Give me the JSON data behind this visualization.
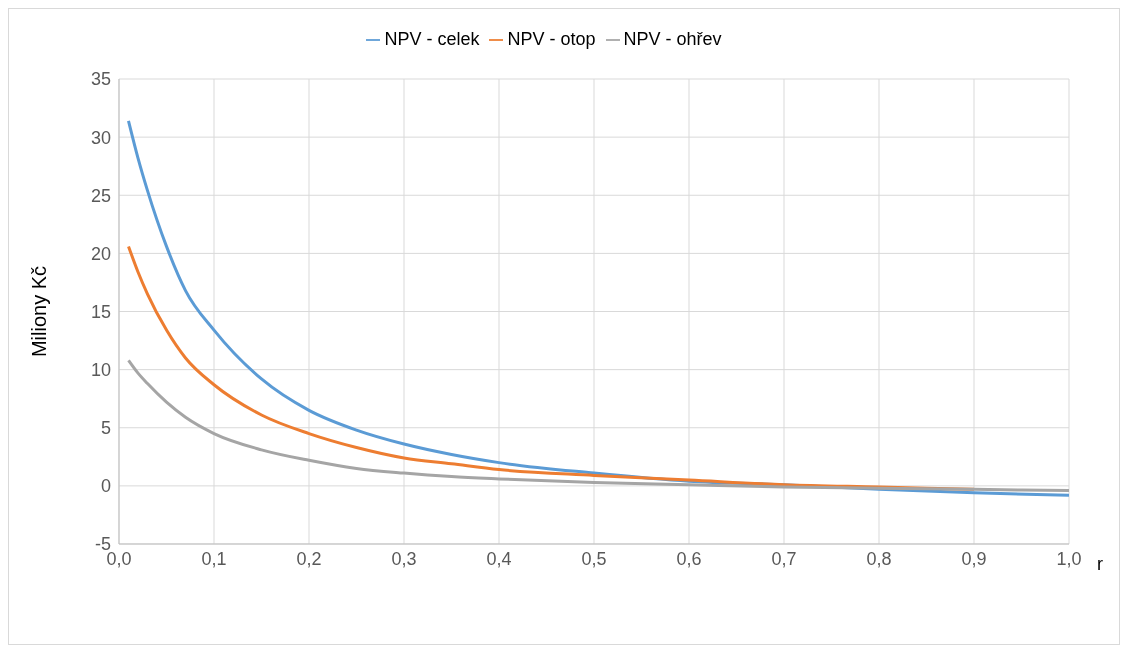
{
  "chart_data": {
    "type": "line",
    "xlabel": "r",
    "ylabel": "Miliony Kč",
    "x": [
      0.01,
      0.02,
      0.03,
      0.05,
      0.07,
      0.1,
      0.15,
      0.2,
      0.25,
      0.3,
      0.35,
      0.4,
      0.5,
      0.6,
      0.7,
      0.8,
      0.9,
      1.0
    ],
    "series": [
      {
        "name": "NPV - celek",
        "color": "#5b9bd5",
        "values": [
          31.4,
          28.2,
          25.4,
          20.6,
          16.8,
          13.4,
          9.2,
          6.5,
          4.8,
          3.6,
          2.7,
          2.0,
          1.1,
          0.4,
          0.1,
          -0.3,
          -0.6,
          -0.8
        ]
      },
      {
        "name": "NPV - otop",
        "color": "#ed7d31",
        "values": [
          20.6,
          18.4,
          16.5,
          13.4,
          11.0,
          8.7,
          6.1,
          4.5,
          3.3,
          2.4,
          1.9,
          1.4,
          0.9,
          0.5,
          0.1,
          -0.1,
          -0.3,
          null
        ]
      },
      {
        "name": "NPV - ohřev",
        "color": "#a5a5a5",
        "values": [
          10.8,
          9.7,
          8.8,
          7.2,
          5.9,
          4.5,
          3.1,
          2.2,
          1.5,
          1.1,
          0.8,
          0.6,
          0.3,
          0.1,
          -0.1,
          -0.2,
          -0.3,
          -0.4
        ]
      }
    ],
    "xlim": [
      0,
      1
    ],
    "xticks": [
      {
        "value": 0,
        "label": "0,0"
      },
      {
        "value": 0.1,
        "label": "0,1"
      },
      {
        "value": 0.2,
        "label": "0,2"
      },
      {
        "value": 0.3,
        "label": "0,3"
      },
      {
        "value": 0.4,
        "label": "0,4"
      },
      {
        "value": 0.5,
        "label": "0,5"
      },
      {
        "value": 0.6,
        "label": "0,6"
      },
      {
        "value": 0.7,
        "label": "0,7"
      },
      {
        "value": 0.8,
        "label": "0,8"
      },
      {
        "value": 0.9,
        "label": "0,9"
      },
      {
        "value": 1,
        "label": "1,0"
      }
    ],
    "ylim": [
      -5,
      35
    ],
    "yticks": [
      -5,
      0,
      5,
      10,
      15,
      20,
      25,
      30,
      35
    ],
    "grid": true,
    "legend": "top",
    "marker": "none",
    "line_style": "solid"
  }
}
